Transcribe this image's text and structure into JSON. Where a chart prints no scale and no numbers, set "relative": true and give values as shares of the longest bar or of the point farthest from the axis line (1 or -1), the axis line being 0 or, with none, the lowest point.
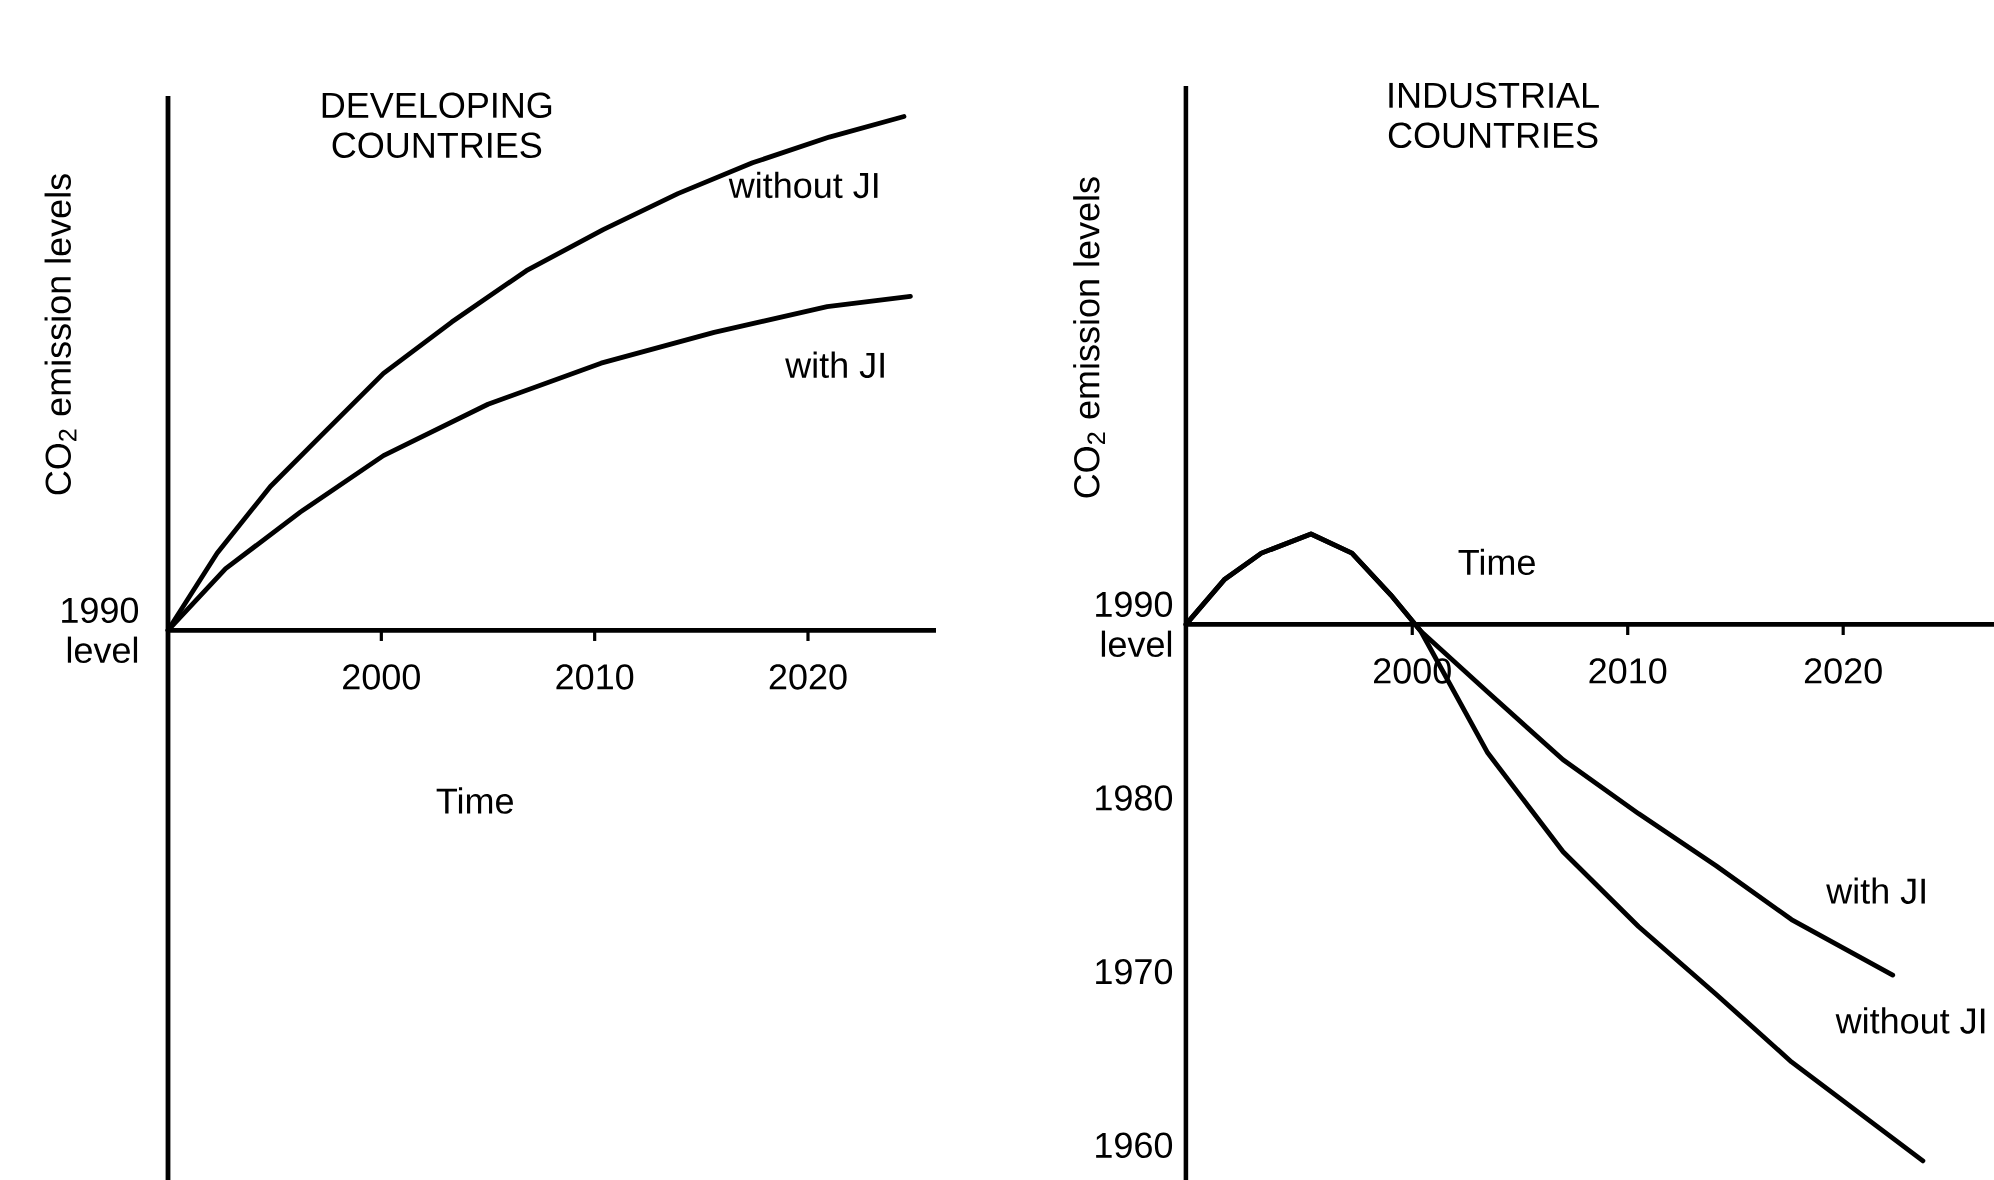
{
  "chart_data": [
    {
      "type": "line",
      "title": "DEVELOPING COUNTRIES",
      "xlabel": "Time",
      "ylabel": "CO$_{2}$ emission levels",
      "relative": true,
      "xlim": [
        1990,
        2026
      ],
      "xticks": [
        2000,
        2010,
        2020
      ],
      "annotations": [
        "1990 level"
      ],
      "series": [
        {
          "name": "without JI",
          "color": "#000000",
          "x": [
            1990,
            1992.3,
            1994.8,
            1997.2,
            2000.1,
            2003.3,
            2006.8,
            2010.4,
            2013.9,
            2017.4,
            2021.0,
            2024.5
          ],
          "values": [
            0,
            0.15,
            0.28,
            0.38,
            0.5,
            0.6,
            0.7,
            0.78,
            0.85,
            0.91,
            0.96,
            1
          ]
        },
        {
          "name": "with JI",
          "color": "#000000",
          "x": [
            1990,
            1992.7,
            1996.2,
            2000.1,
            2005.0,
            2010.3,
            2015.6,
            2020.9,
            2024.8
          ],
          "values": [
            0,
            0.12,
            0.23,
            0.34,
            0.44,
            0.52,
            0.58,
            0.63,
            0.65
          ]
        }
      ]
    },
    {
      "type": "line",
      "title": "INDUSTRIAL COUNTRIES",
      "xlabel": "Time",
      "ylabel": "CO$_{2}$ emission levels",
      "xlim": [
        1989.5,
        2027
      ],
      "xticks": [
        2000,
        2010,
        2020
      ],
      "ylim": [
        1958,
        2021
      ],
      "yticks": [
        {
          "value": 1990,
          "label": "1990 level"
        },
        1980,
        1970,
        1960
      ],
      "series": [
        {
          "name": "with JI",
          "color": "#000000",
          "x": [
            1989.5,
            1991.3,
            1993.0,
            1995.3,
            1997.2,
            1999.0,
            2000.4,
            2003.5,
            2007.0,
            2010.5,
            2014.1,
            2017.6,
            2022.3
          ],
          "values": [
            1990,
            1992.6,
            1994.1,
            1995.2,
            1994.1,
            1991.7,
            1989.6,
            1986.1,
            1982.2,
            1979.1,
            1976.1,
            1973.0,
            1969.8
          ]
        },
        {
          "name": "without JI",
          "color": "#000000",
          "x": [
            1989.5,
            1991.3,
            1993.0,
            1995.3,
            1997.2,
            1999.0,
            2000.4,
            2003.5,
            2007.0,
            2010.5,
            2014.1,
            2017.6,
            2023.7
          ],
          "values": [
            1990,
            1992.6,
            1994.1,
            1995.2,
            1994.1,
            1991.7,
            1989.6,
            1982.6,
            1976.9,
            1972.6,
            1968.7,
            1964.8,
            1959.1
          ]
        }
      ]
    }
  ]
}
